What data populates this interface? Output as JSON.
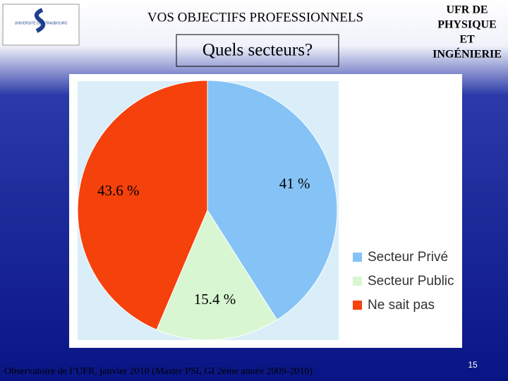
{
  "header": {
    "logo_text": "UNIVERSITÉ DE STRASBOURG",
    "title": "VOS OBJECTIFS PROFESSIONNELS",
    "department_lines": [
      "UFR DE",
      "PHYSIQUE",
      "ET",
      "INGÉNIERIE"
    ]
  },
  "chart_data": {
    "type": "pie",
    "title": "Quels secteurs?",
    "categories": [
      "Secteur Privé",
      "Secteur Public",
      "Ne sait pas"
    ],
    "values": [
      41,
      15.4,
      43.6
    ],
    "value_labels": [
      "41 %",
      "15.4 %",
      "43.6 %"
    ],
    "colors": [
      "#85c3f6",
      "#d8f6d2",
      "#f5410c"
    ]
  },
  "footer": {
    "source": "Observatoire de l’UFR, janvier 2010 (Master PSI, GI 2ème année 2009-2010)",
    "page": "15"
  }
}
